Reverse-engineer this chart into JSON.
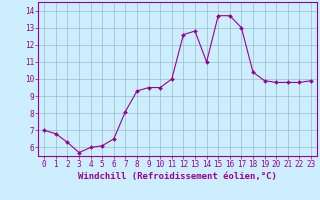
{
  "x": [
    0,
    1,
    2,
    3,
    4,
    5,
    6,
    7,
    8,
    9,
    10,
    11,
    12,
    13,
    14,
    15,
    16,
    17,
    18,
    19,
    20,
    21,
    22,
    23
  ],
  "y": [
    7.0,
    6.8,
    6.3,
    5.7,
    6.0,
    6.1,
    6.5,
    8.1,
    9.3,
    9.5,
    9.5,
    10.0,
    12.6,
    12.8,
    11.0,
    13.7,
    13.7,
    13.0,
    10.4,
    9.9,
    9.8,
    9.8,
    9.8,
    9.9
  ],
  "line_color": "#990099",
  "marker": "D",
  "marker_size": 2.0,
  "line_width": 0.8,
  "background_color": "#cceeff",
  "grid_color": "#99bbcc",
  "axis_color": "#990099",
  "tick_label_color": "#990099",
  "xlabel": "Windchill (Refroidissement éolien,°C)",
  "xlabel_color": "#990099",
  "xlabel_fontsize": 6.5,
  "tick_fontsize": 5.5,
  "ylim": [
    5.5,
    14.5
  ],
  "xlim": [
    -0.5,
    23.5
  ],
  "yticks": [
    6,
    7,
    8,
    9,
    10,
    11,
    12,
    13,
    14
  ],
  "xticks": [
    0,
    1,
    2,
    3,
    4,
    5,
    6,
    7,
    8,
    9,
    10,
    11,
    12,
    13,
    14,
    15,
    16,
    17,
    18,
    19,
    20,
    21,
    22,
    23
  ]
}
